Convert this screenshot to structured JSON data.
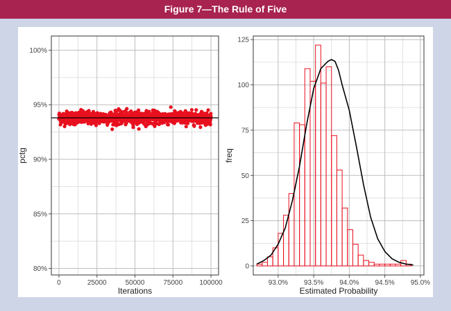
{
  "figure": {
    "title": "Figure 7—The Rule of Five"
  },
  "chart_data": [
    {
      "type": "scatter",
      "xlabel": "Iterations",
      "ylabel": "pctg",
      "xlim": [
        -5000,
        105000
      ],
      "ylim": [
        79.4,
        101.3
      ],
      "x_ticks": [
        0,
        25000,
        50000,
        75000,
        100000
      ],
      "x_tick_labels": [
        "0",
        "25000",
        "50000",
        "75000",
        "100000"
      ],
      "y_ticks": [
        80,
        85,
        90,
        95,
        100
      ],
      "y_tick_labels": [
        "80%",
        "85%",
        "90%",
        "95%",
        "100%"
      ],
      "reference_line": 93.8,
      "points": {
        "count": 1000,
        "x_range": [
          0,
          100000
        ],
        "y_center": 93.8,
        "y_spread_sd": 0.3,
        "color": "#e8101f"
      },
      "grid": true,
      "grid_color": "#bdbdbd"
    },
    {
      "type": "bar",
      "xlabel": "Estimated Probability",
      "ylabel": "freq",
      "xlim": [
        92.65,
        95.05
      ],
      "ylim": [
        -5,
        127
      ],
      "x_ticks": [
        93.0,
        93.5,
        94.0,
        94.5,
        95.0
      ],
      "x_tick_labels": [
        "93.0%",
        "93.5%",
        "94.0%",
        "94.5%",
        "95.0%"
      ],
      "y_ticks": [
        0,
        25,
        50,
        75,
        100,
        125
      ],
      "y_tick_labels": [
        "0",
        "25",
        "50",
        "75",
        "100",
        "125"
      ],
      "bin_width": 0.075,
      "bin_starts": [
        92.7,
        92.775,
        92.85,
        92.925,
        93.0,
        93.075,
        93.15,
        93.225,
        93.3,
        93.375,
        93.45,
        93.525,
        93.6,
        93.675,
        93.75,
        93.825,
        93.9,
        93.975,
        94.05,
        94.125,
        94.2,
        94.275,
        94.35,
        94.425,
        94.5,
        94.575,
        94.65,
        94.725,
        94.8
      ],
      "values": [
        1,
        2,
        5,
        10,
        18,
        28,
        40,
        79,
        78,
        109,
        102,
        122,
        101,
        110,
        72,
        53,
        32,
        20,
        12,
        6,
        3,
        2,
        1,
        1,
        1,
        1,
        1,
        3,
        1
      ],
      "bar_edge_color": "#e8101f",
      "density_curve": {
        "x": [
          92.7,
          92.8,
          92.9,
          93.0,
          93.1,
          93.2,
          93.3,
          93.4,
          93.5,
          93.6,
          93.7,
          93.75,
          93.8,
          93.85,
          93.9,
          94.0,
          94.1,
          94.2,
          94.3,
          94.4,
          94.5,
          94.6,
          94.7,
          94.8,
          94.9
        ],
        "y": [
          1,
          3,
          6,
          12,
          21,
          36,
          55,
          78,
          98,
          109,
          113,
          114,
          113,
          108,
          100,
          86,
          66,
          45,
          27,
          15,
          8,
          4,
          2,
          1,
          0.5
        ],
        "color": "#000000"
      },
      "grid": true,
      "grid_color": "#bdbdbd"
    }
  ]
}
